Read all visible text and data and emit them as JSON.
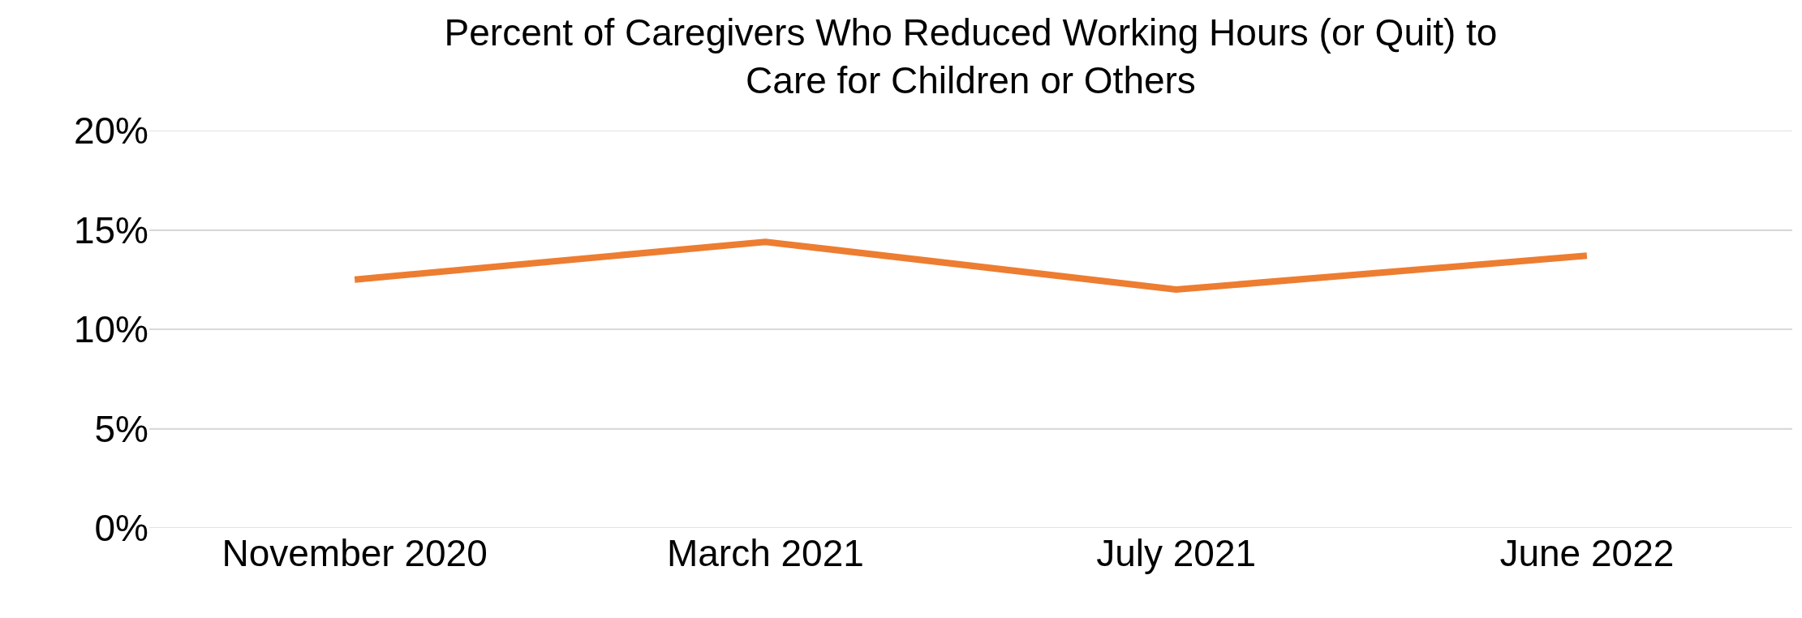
{
  "chart_data": {
    "type": "line",
    "title": "Percent of Caregivers Who Reduced Working Hours (or Quit) to\nCare for Children or Others",
    "categories": [
      "November 2020",
      "March 2021",
      "July 2021",
      "June 2022"
    ],
    "series": [
      {
        "color": "#ed7d31",
        "values": [
          12.5,
          14.4,
          12.0,
          13.7
        ]
      }
    ],
    "ylim": [
      0,
      20
    ],
    "yticks": [
      {
        "value": 0,
        "label": "0%"
      },
      {
        "value": 5,
        "label": "5%"
      },
      {
        "value": 10,
        "label": "10%"
      },
      {
        "value": 15,
        "label": "15%"
      },
      {
        "value": 20,
        "label": "20%"
      }
    ],
    "grid": "y",
    "marker": "none",
    "line_style": "solid"
  }
}
